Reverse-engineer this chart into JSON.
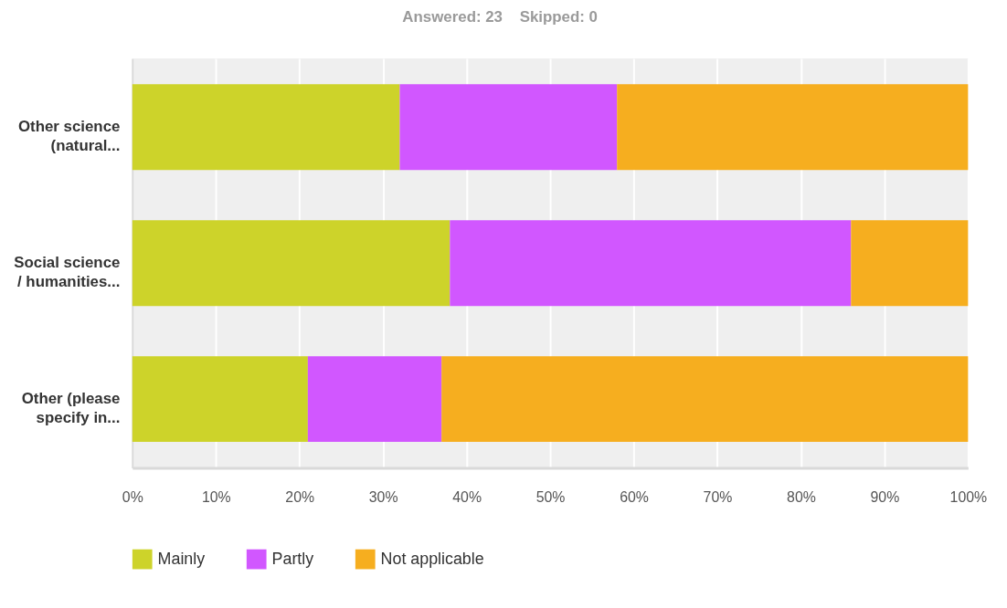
{
  "chart_data": {
    "type": "bar",
    "title": "Answered: 23    Skipped: 0",
    "orientation": "horizontal",
    "stacked": true,
    "categories": [
      "Other science (natural...",
      "Social science / humanities...",
      "Other (please specify in..."
    ],
    "series": [
      {
        "name": "Mainly",
        "color": "#cdd32a",
        "values": [
          32,
          38,
          21
        ]
      },
      {
        "name": "Partly",
        "color": "#d157ff",
        "values": [
          26,
          48,
          16
        ]
      },
      {
        "name": "Not applicable",
        "color": "#f6ae1f",
        "values": [
          42,
          14,
          63
        ]
      }
    ],
    "xlim": [
      0,
      100
    ],
    "xticks": [
      {
        "value": 0,
        "label": "0%"
      },
      {
        "value": 10,
        "label": "10%"
      },
      {
        "value": 20,
        "label": "20%"
      },
      {
        "value": 30,
        "label": "30%"
      },
      {
        "value": 40,
        "label": "40%"
      },
      {
        "value": 50,
        "label": "50%"
      },
      {
        "value": 60,
        "label": "60%"
      },
      {
        "value": 70,
        "label": "70%"
      },
      {
        "value": 80,
        "label": "80%"
      },
      {
        "value": 90,
        "label": "90%"
      },
      {
        "value": 100,
        "label": "100%"
      }
    ],
    "grid": "x",
    "legend": "bottom left"
  }
}
